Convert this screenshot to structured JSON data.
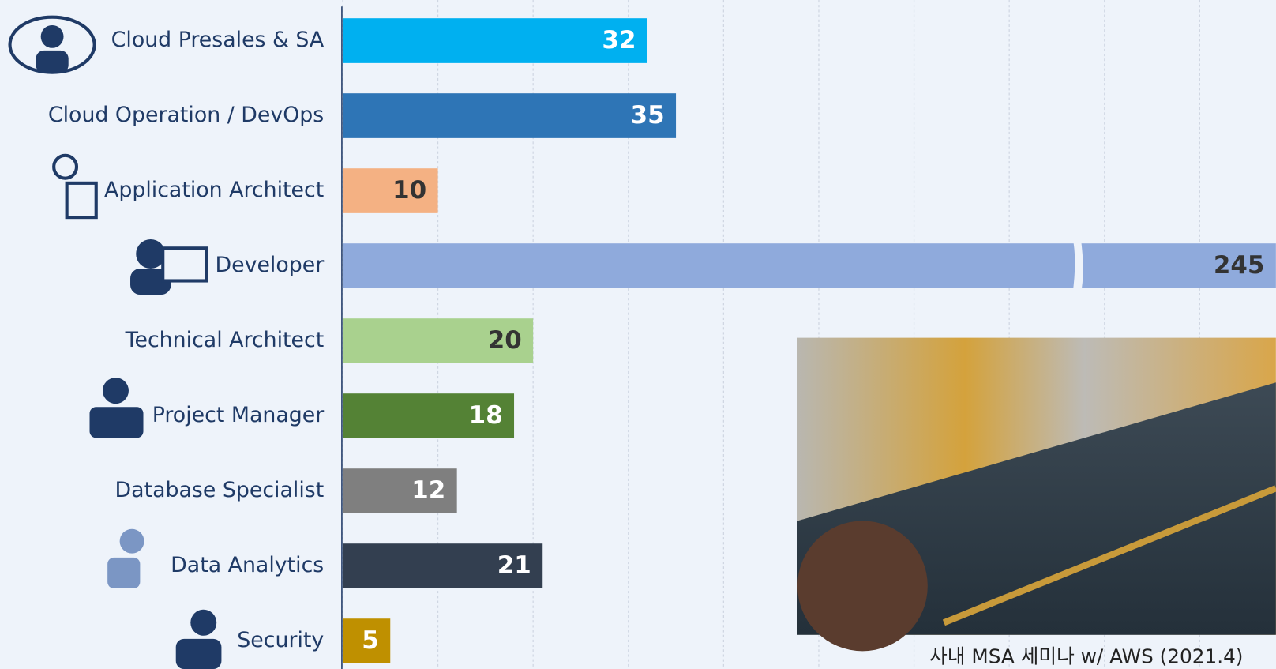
{
  "chart_data": {
    "type": "bar",
    "orientation": "horizontal",
    "categories": [
      "Cloud Presales & SA",
      "Cloud Operation / DevOps",
      "Application Architect",
      "Developer",
      "Technical Architect",
      "Project Manager",
      "Database Specialist",
      "Data Analytics",
      "Security"
    ],
    "values": [
      32,
      35,
      10,
      245,
      20,
      18,
      12,
      21,
      5
    ],
    "colors": [
      "#00b0f0",
      "#2e75b6",
      "#f4b183",
      "#8faadc",
      "#a9d18e",
      "#548235",
      "#7f7f7f",
      "#333f50",
      "#bf9000"
    ],
    "xlim": [
      0,
      98
    ],
    "xticks": [
      0,
      10,
      20,
      30,
      40,
      50,
      60,
      70,
      80,
      90
    ],
    "grid": true,
    "axis_break": true,
    "photo_caption": "사내 MSA 세미나 w/ AWS (2021.4)"
  }
}
